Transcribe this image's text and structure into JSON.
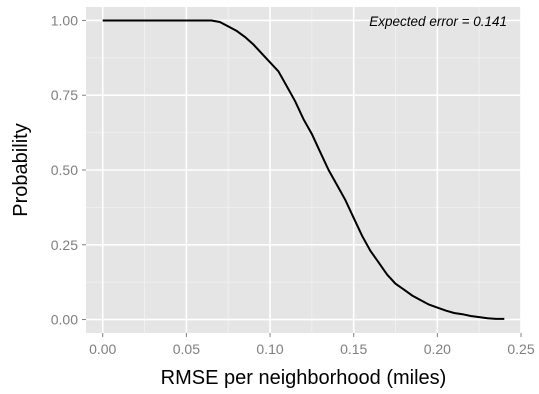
{
  "chart_data": {
    "type": "line",
    "title": "",
    "xlabel": "RMSE per neighborhood (miles)",
    "ylabel": "Probability",
    "xlim": [
      -0.01,
      0.25
    ],
    "ylim": [
      -0.045,
      1.045
    ],
    "x_ticks": [
      "0.00",
      "0.05",
      "0.10",
      "0.15",
      "0.20",
      "0.25"
    ],
    "y_ticks": [
      "0.00",
      "0.25",
      "0.50",
      "0.75",
      "1.00"
    ],
    "annotation": "Expected error = 0.141",
    "grid": true,
    "legend": "none",
    "colors": {
      "panel_background": "#e5e5e5",
      "grid_major": "#ffffff",
      "grid_minor": "#f2f2f2",
      "line": "#000000",
      "tick_label": "#7f7f7f"
    },
    "series": [
      {
        "x": [
          0.0,
          0.065,
          0.07,
          0.075,
          0.08,
          0.085,
          0.09,
          0.095,
          0.1,
          0.105,
          0.11,
          0.115,
          0.12,
          0.125,
          0.13,
          0.135,
          0.14,
          0.145,
          0.15,
          0.155,
          0.16,
          0.165,
          0.17,
          0.175,
          0.18,
          0.185,
          0.19,
          0.195,
          0.2,
          0.205,
          0.21,
          0.215,
          0.22,
          0.225,
          0.23,
          0.235,
          0.24
        ],
        "y": [
          1.0,
          1.0,
          0.995,
          0.98,
          0.965,
          0.945,
          0.92,
          0.89,
          0.86,
          0.83,
          0.78,
          0.73,
          0.67,
          0.62,
          0.56,
          0.5,
          0.45,
          0.4,
          0.34,
          0.28,
          0.23,
          0.19,
          0.15,
          0.12,
          0.1,
          0.08,
          0.065,
          0.05,
          0.04,
          0.03,
          0.022,
          0.018,
          0.012,
          0.008,
          0.004,
          0.002,
          0.002
        ]
      }
    ]
  }
}
